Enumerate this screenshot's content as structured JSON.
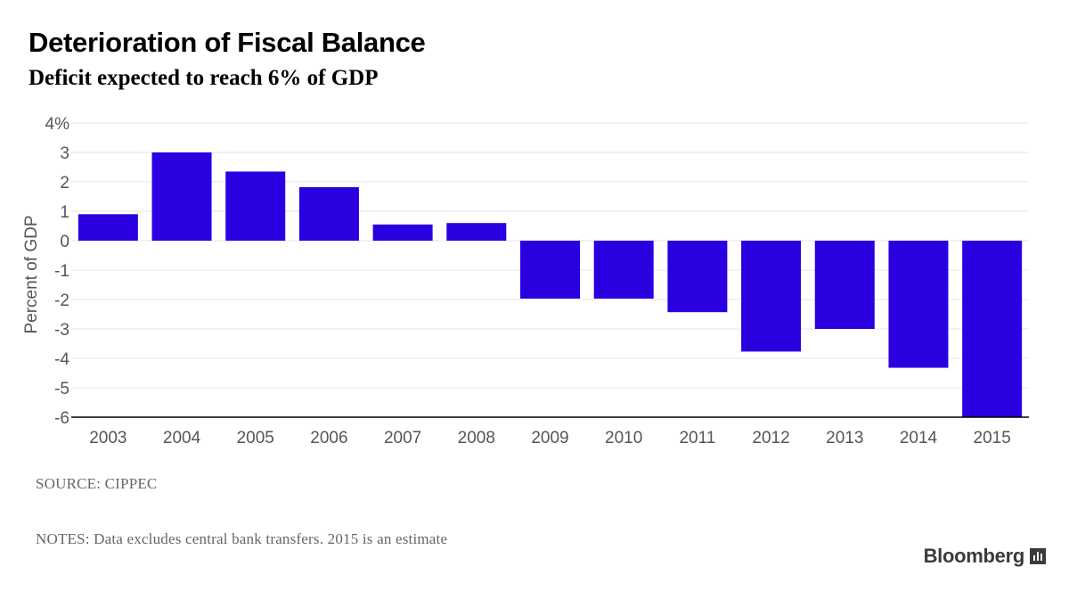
{
  "header": {
    "title": "Deterioration of Fiscal Balance",
    "subtitle": "Deficit expected to reach 6% of GDP"
  },
  "footer": {
    "source": "SOURCE: CIPPEC",
    "notes": "NOTES: Data excludes central bank transfers. 2015 is an estimate",
    "brand": "Bloomberg",
    "brand_icon": "bloomberg-terminal-icon"
  },
  "colors": {
    "bar": "#2a00e0",
    "grid": "#e6e6e6",
    "axis": "#000000",
    "tick_text": "#555555"
  },
  "chart_data": {
    "type": "bar",
    "title": "Deterioration of Fiscal Balance",
    "subtitle": "Deficit expected to reach 6% of GDP",
    "xlabel": "",
    "ylabel": "Percent of GDP",
    "categories": [
      "2003",
      "2004",
      "2005",
      "2006",
      "2007",
      "2008",
      "2009",
      "2010",
      "2011",
      "2012",
      "2013",
      "2014",
      "2015"
    ],
    "values": [
      0.9,
      3.0,
      2.35,
      1.82,
      0.55,
      0.6,
      -1.97,
      -1.97,
      -2.43,
      -3.77,
      -3.0,
      -4.32,
      -6.0
    ],
    "ylim": [
      -6,
      4
    ],
    "yticks": [
      4,
      3,
      2,
      1,
      0,
      -1,
      -2,
      -3,
      -4,
      -5,
      -6
    ],
    "ytick_labels": [
      "4%",
      "3",
      "2",
      "1",
      "0",
      "-1",
      "-2",
      "-3",
      "-4",
      "-5",
      "-6"
    ],
    "grid": true,
    "legend": "none"
  }
}
